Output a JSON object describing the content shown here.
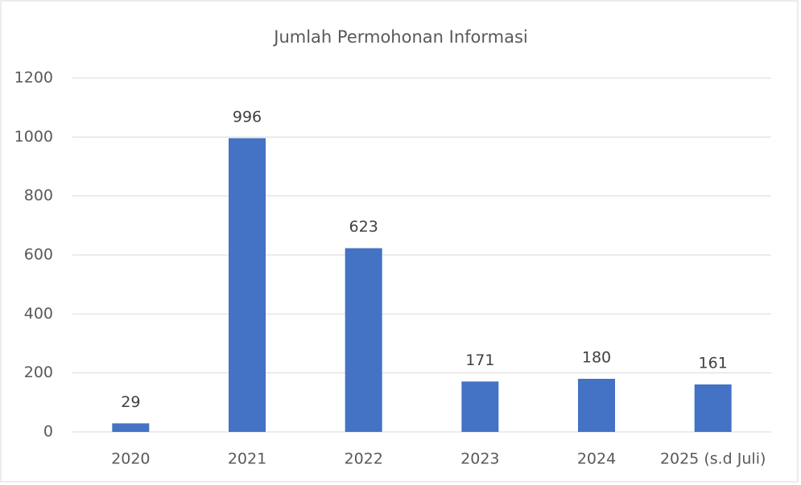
{
  "chart_data": {
    "type": "bar",
    "title": "Jumlah Permohonan Informasi",
    "categories": [
      "2020",
      "2021",
      "2022",
      "2023",
      "2024",
      "2025 (s.d Juli)"
    ],
    "values": [
      29,
      996,
      623,
      171,
      180,
      161
    ],
    "color": "#4472c4",
    "ylim": [
      0,
      1200
    ],
    "yticks": [
      0,
      200,
      400,
      600,
      800,
      1000,
      1200
    ],
    "grid": true
  }
}
